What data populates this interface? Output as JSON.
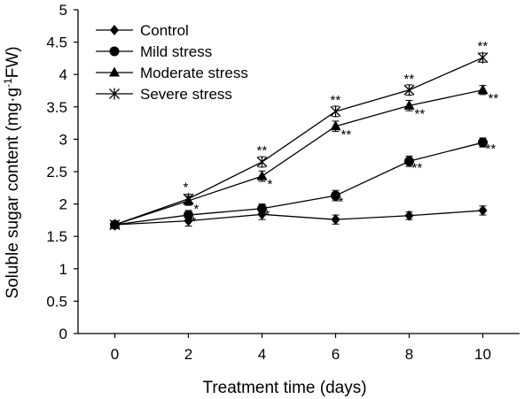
{
  "chart_data": {
    "type": "line",
    "title": "",
    "xlabel": "Treatment time (days)",
    "ylabel_parts": [
      "Soluble sugar content (mg·g",
      "-1",
      "FW)"
    ],
    "xlim": [
      -1,
      11
    ],
    "ylim": [
      0,
      5
    ],
    "x_ticks": [
      0,
      2,
      4,
      6,
      8,
      10
    ],
    "y_ticks": [
      0,
      0.5,
      1,
      1.5,
      2,
      2.5,
      3,
      3.5,
      4,
      4.5,
      5
    ],
    "y_tick_labels": [
      "0",
      "0.5",
      "1",
      "1.5",
      "2",
      "2.5",
      "3",
      "3.5",
      "4",
      "4.5",
      "5"
    ],
    "legend_position": "top-left",
    "x": [
      0,
      2,
      4,
      6,
      8,
      10
    ],
    "series": [
      {
        "name": "Control",
        "marker": "diamond",
        "values": [
          1.68,
          1.74,
          1.84,
          1.76,
          1.82,
          1.9
        ],
        "errors": [
          0.05,
          0.08,
          0.08,
          0.07,
          0.06,
          0.07
        ],
        "significance": [
          "",
          "",
          "",
          "",
          "",
          ""
        ]
      },
      {
        "name": "Mild stress",
        "marker": "circle",
        "values": [
          1.68,
          1.83,
          1.93,
          2.13,
          2.66,
          2.95
        ],
        "errors": [
          0.05,
          0.07,
          0.07,
          0.08,
          0.08,
          0.07
        ],
        "significance": [
          "",
          "*",
          "*",
          "*",
          "**",
          "**"
        ]
      },
      {
        "name": "Moderate stress",
        "marker": "triangle",
        "values": [
          1.68,
          2.05,
          2.43,
          3.2,
          3.52,
          3.76
        ],
        "errors": [
          0.05,
          0.07,
          0.08,
          0.08,
          0.08,
          0.07
        ],
        "significance": [
          "",
          "*",
          "*",
          "**",
          "**",
          "**"
        ]
      },
      {
        "name": "Severe stress",
        "marker": "asterisk",
        "values": [
          1.68,
          2.08,
          2.65,
          3.43,
          3.76,
          4.26
        ],
        "errors": [
          0.05,
          0.07,
          0.08,
          0.08,
          0.08,
          0.07
        ],
        "significance": [
          "",
          "*",
          "**",
          "**",
          "**",
          "**"
        ]
      }
    ]
  }
}
